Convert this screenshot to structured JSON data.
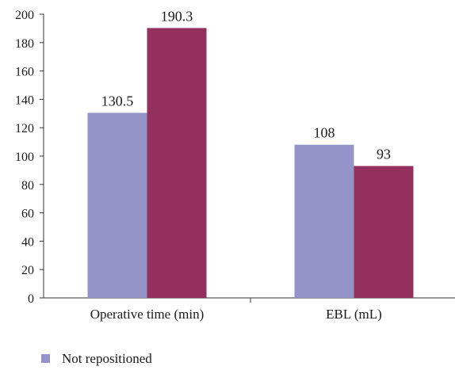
{
  "chart_data": {
    "type": "bar",
    "title": "",
    "xlabel": "",
    "ylabel": "",
    "categories": [
      "Operative time (min)",
      "EBL (mL)"
    ],
    "series": [
      {
        "name": "Not repositioned",
        "values": [
          130.5,
          108
        ],
        "labels": [
          "130.5",
          "108"
        ],
        "color": "#9494c8"
      },
      {
        "name": "",
        "values": [
          190.3,
          93
        ],
        "labels": [
          "190.3",
          "93"
        ],
        "color": "#93305e"
      }
    ],
    "ylim": [
      0,
      200
    ],
    "yticks": [
      0,
      20,
      40,
      60,
      80,
      100,
      120,
      140,
      160,
      180,
      200
    ],
    "grid": false,
    "legend_position": "bottom-left"
  }
}
